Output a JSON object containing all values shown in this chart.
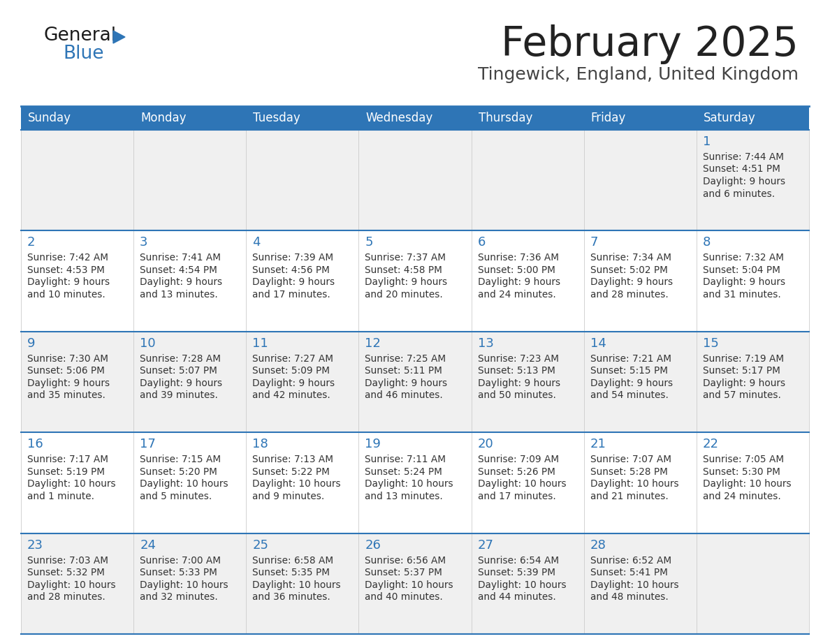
{
  "title": "February 2025",
  "subtitle": "Tingewick, England, United Kingdom",
  "header_bg": "#2e75b6",
  "header_text_color": "#ffffff",
  "cell_bg_even": "#f0f0f0",
  "cell_bg_odd": "#ffffff",
  "day_headers": [
    "Sunday",
    "Monday",
    "Tuesday",
    "Wednesday",
    "Thursday",
    "Friday",
    "Saturday"
  ],
  "title_color": "#222222",
  "subtitle_color": "#444444",
  "day_num_color": "#2e75b6",
  "cell_text_color": "#333333",
  "divider_color": "#2e75b6",
  "logo_general_color": "#1a1a1a",
  "logo_blue_color": "#2e75b6",
  "logo_triangle_color": "#2e75b6",
  "weeks": [
    [
      {
        "day": null,
        "sunrise": null,
        "sunset": null,
        "daylight": null
      },
      {
        "day": null,
        "sunrise": null,
        "sunset": null,
        "daylight": null
      },
      {
        "day": null,
        "sunrise": null,
        "sunset": null,
        "daylight": null
      },
      {
        "day": null,
        "sunrise": null,
        "sunset": null,
        "daylight": null
      },
      {
        "day": null,
        "sunrise": null,
        "sunset": null,
        "daylight": null
      },
      {
        "day": null,
        "sunrise": null,
        "sunset": null,
        "daylight": null
      },
      {
        "day": 1,
        "sunrise": "7:44 AM",
        "sunset": "4:51 PM",
        "daylight": "9 hours and 6 minutes."
      }
    ],
    [
      {
        "day": 2,
        "sunrise": "7:42 AM",
        "sunset": "4:53 PM",
        "daylight": "9 hours and 10 minutes."
      },
      {
        "day": 3,
        "sunrise": "7:41 AM",
        "sunset": "4:54 PM",
        "daylight": "9 hours and 13 minutes."
      },
      {
        "day": 4,
        "sunrise": "7:39 AM",
        "sunset": "4:56 PM",
        "daylight": "9 hours and 17 minutes."
      },
      {
        "day": 5,
        "sunrise": "7:37 AM",
        "sunset": "4:58 PM",
        "daylight": "9 hours and 20 minutes."
      },
      {
        "day": 6,
        "sunrise": "7:36 AM",
        "sunset": "5:00 PM",
        "daylight": "9 hours and 24 minutes."
      },
      {
        "day": 7,
        "sunrise": "7:34 AM",
        "sunset": "5:02 PM",
        "daylight": "9 hours and 28 minutes."
      },
      {
        "day": 8,
        "sunrise": "7:32 AM",
        "sunset": "5:04 PM",
        "daylight": "9 hours and 31 minutes."
      }
    ],
    [
      {
        "day": 9,
        "sunrise": "7:30 AM",
        "sunset": "5:06 PM",
        "daylight": "9 hours and 35 minutes."
      },
      {
        "day": 10,
        "sunrise": "7:28 AM",
        "sunset": "5:07 PM",
        "daylight": "9 hours and 39 minutes."
      },
      {
        "day": 11,
        "sunrise": "7:27 AM",
        "sunset": "5:09 PM",
        "daylight": "9 hours and 42 minutes."
      },
      {
        "day": 12,
        "sunrise": "7:25 AM",
        "sunset": "5:11 PM",
        "daylight": "9 hours and 46 minutes."
      },
      {
        "day": 13,
        "sunrise": "7:23 AM",
        "sunset": "5:13 PM",
        "daylight": "9 hours and 50 minutes."
      },
      {
        "day": 14,
        "sunrise": "7:21 AM",
        "sunset": "5:15 PM",
        "daylight": "9 hours and 54 minutes."
      },
      {
        "day": 15,
        "sunrise": "7:19 AM",
        "sunset": "5:17 PM",
        "daylight": "9 hours and 57 minutes."
      }
    ],
    [
      {
        "day": 16,
        "sunrise": "7:17 AM",
        "sunset": "5:19 PM",
        "daylight": "10 hours and 1 minute."
      },
      {
        "day": 17,
        "sunrise": "7:15 AM",
        "sunset": "5:20 PM",
        "daylight": "10 hours and 5 minutes."
      },
      {
        "day": 18,
        "sunrise": "7:13 AM",
        "sunset": "5:22 PM",
        "daylight": "10 hours and 9 minutes."
      },
      {
        "day": 19,
        "sunrise": "7:11 AM",
        "sunset": "5:24 PM",
        "daylight": "10 hours and 13 minutes."
      },
      {
        "day": 20,
        "sunrise": "7:09 AM",
        "sunset": "5:26 PM",
        "daylight": "10 hours and 17 minutes."
      },
      {
        "day": 21,
        "sunrise": "7:07 AM",
        "sunset": "5:28 PM",
        "daylight": "10 hours and 21 minutes."
      },
      {
        "day": 22,
        "sunrise": "7:05 AM",
        "sunset": "5:30 PM",
        "daylight": "10 hours and 24 minutes."
      }
    ],
    [
      {
        "day": 23,
        "sunrise": "7:03 AM",
        "sunset": "5:32 PM",
        "daylight": "10 hours and 28 minutes."
      },
      {
        "day": 24,
        "sunrise": "7:00 AM",
        "sunset": "5:33 PM",
        "daylight": "10 hours and 32 minutes."
      },
      {
        "day": 25,
        "sunrise": "6:58 AM",
        "sunset": "5:35 PM",
        "daylight": "10 hours and 36 minutes."
      },
      {
        "day": 26,
        "sunrise": "6:56 AM",
        "sunset": "5:37 PM",
        "daylight": "10 hours and 40 minutes."
      },
      {
        "day": 27,
        "sunrise": "6:54 AM",
        "sunset": "5:39 PM",
        "daylight": "10 hours and 44 minutes."
      },
      {
        "day": 28,
        "sunrise": "6:52 AM",
        "sunset": "5:41 PM",
        "daylight": "10 hours and 48 minutes."
      },
      {
        "day": null,
        "sunrise": null,
        "sunset": null,
        "daylight": null
      }
    ]
  ]
}
